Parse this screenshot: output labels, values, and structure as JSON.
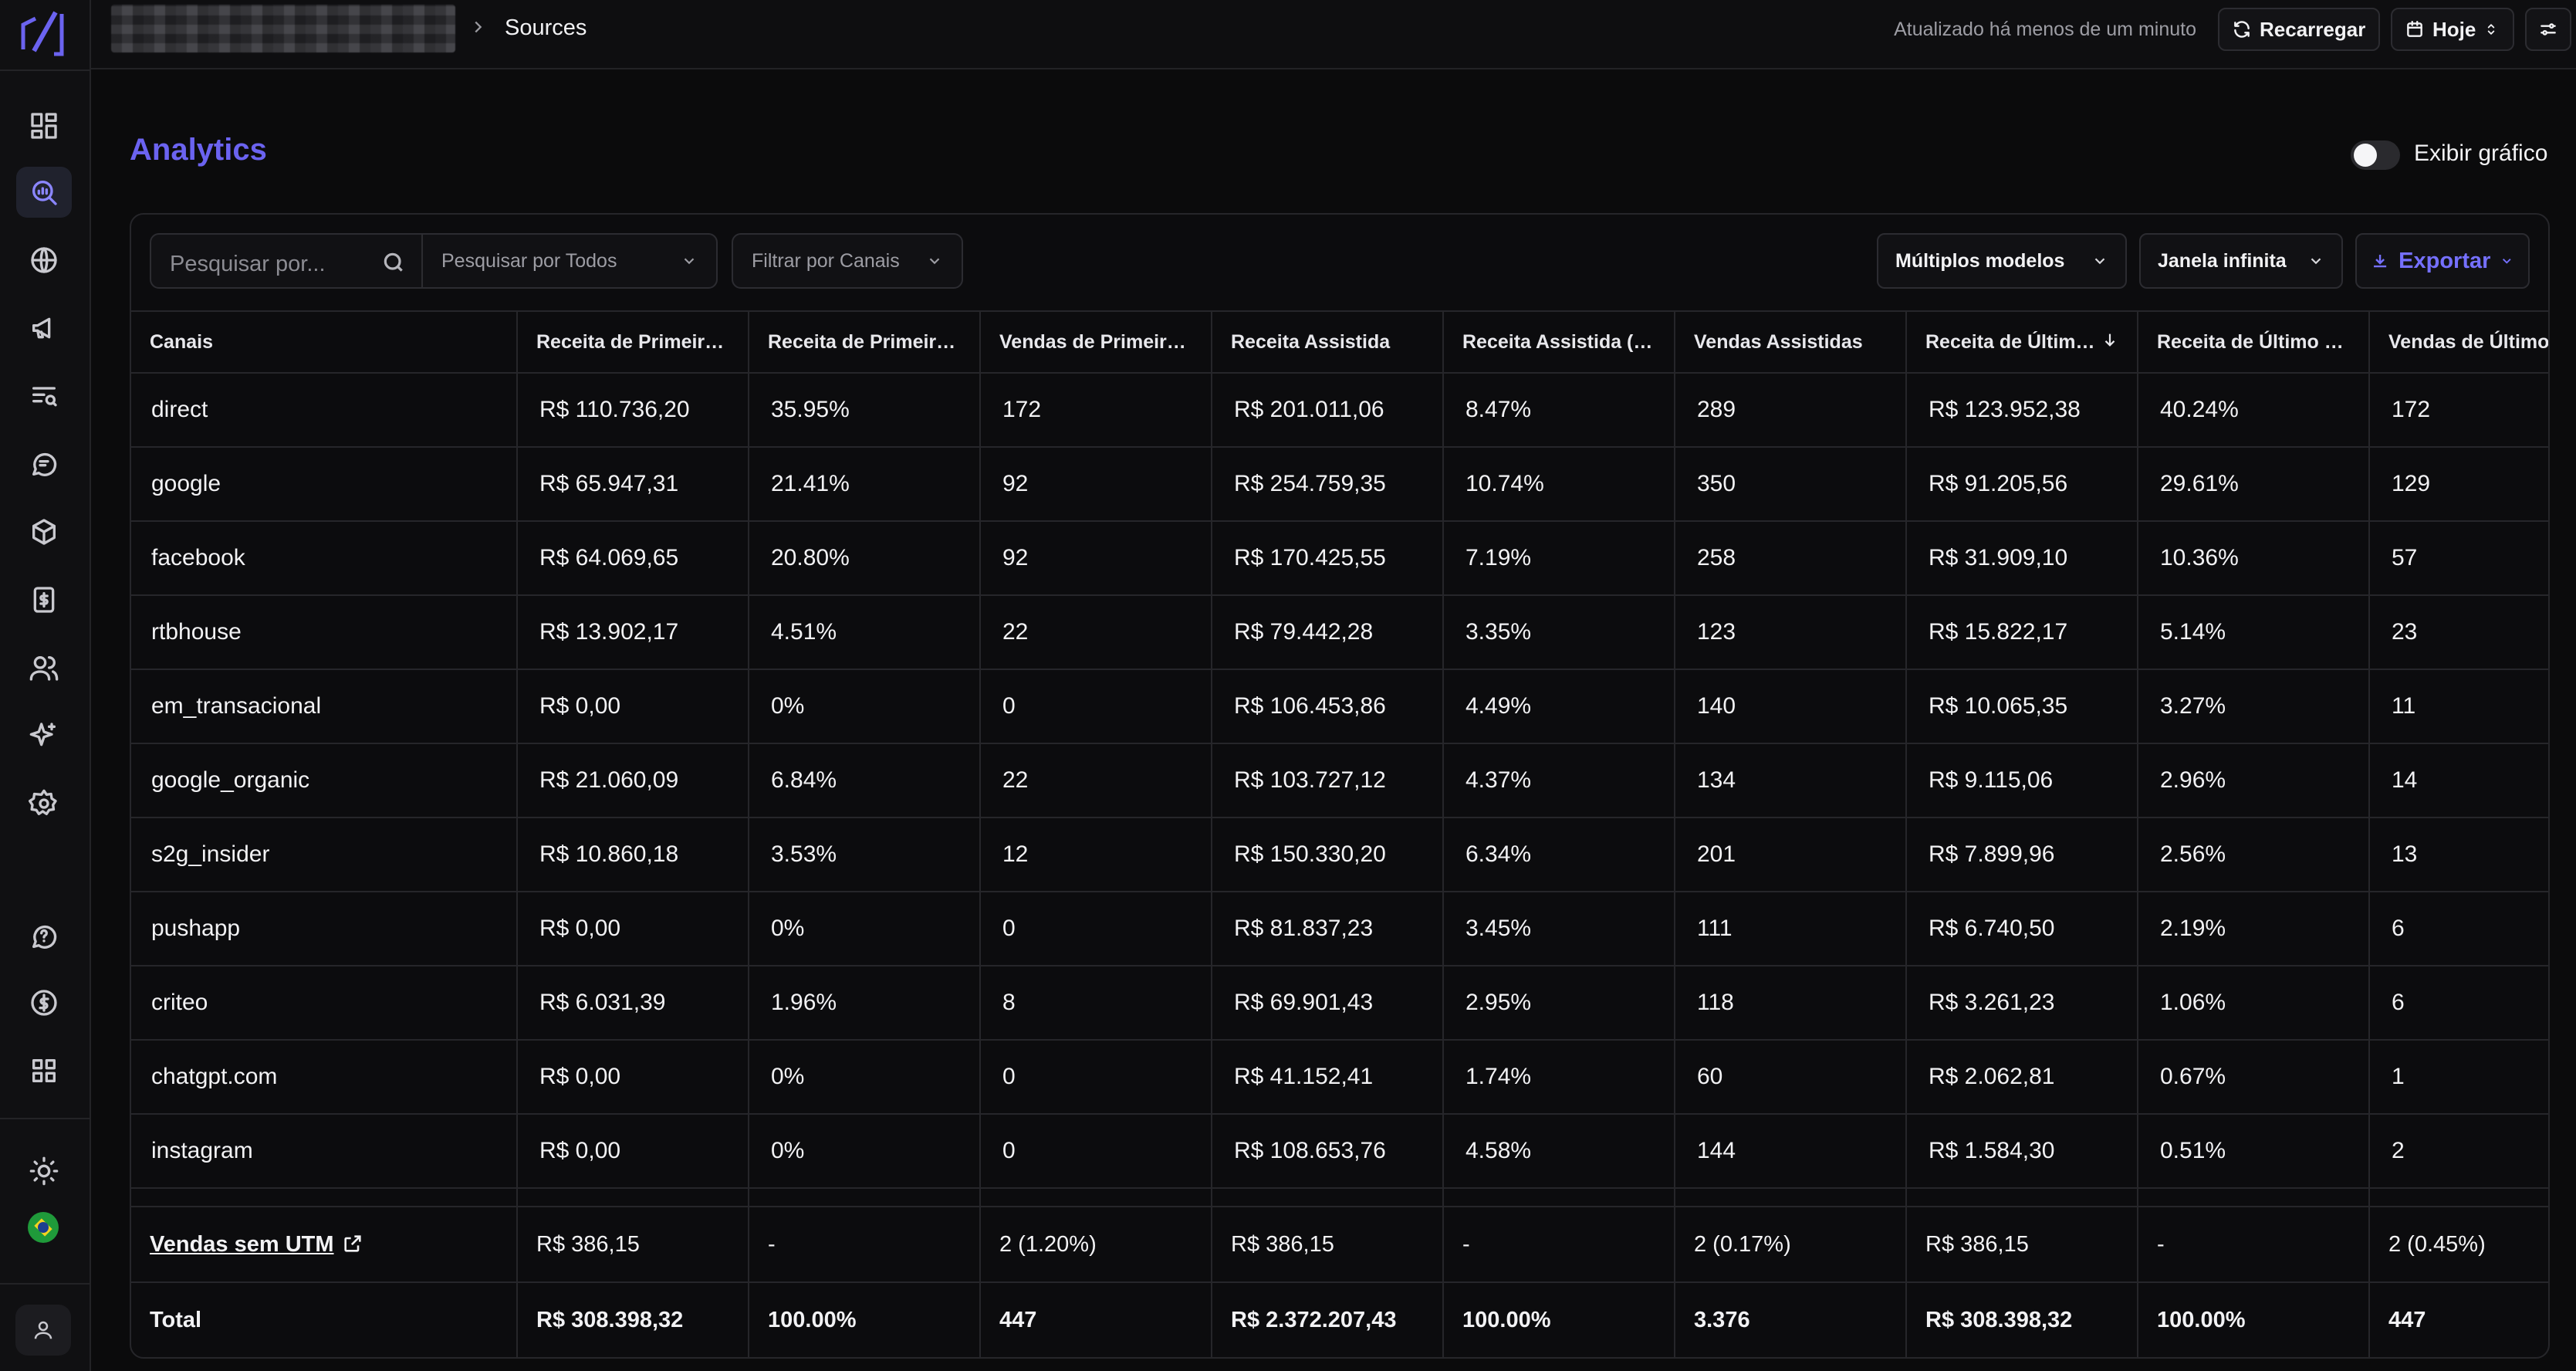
{
  "header": {
    "breadcrumb_current": "Sources",
    "updated_text": "Atualizado há menos de um minuto",
    "reload_label": "Recarregar",
    "date_label": "Hoje"
  },
  "page": {
    "title": "Analytics",
    "show_chart_label": "Exibir gráfico",
    "show_chart_enabled": false
  },
  "toolbar": {
    "search_placeholder": "Pesquisar por...",
    "search_scope": "Pesquisar por Todos",
    "channel_filter": "Filtrar por Canais",
    "models": "Múltiplos modelos",
    "window": "Janela infinita",
    "export_label": "Exportar"
  },
  "table": {
    "columns": [
      "Canais",
      "Receita de Primeiro Clique",
      "Receita de Primeiro Clique (%)",
      "Vendas de Primeiro Clique",
      "Receita Assistida",
      "Receita Assistida (%)",
      "Vendas Assistidas",
      "Receita de Último Clique",
      "Receita de Último Clique (%)",
      "Vendas de Último Clique"
    ],
    "sorted_column_index": 7,
    "rows": [
      [
        "direct",
        "R$ 110.736,20",
        "35.95%",
        "172",
        "R$ 201.011,06",
        "8.47%",
        "289",
        "R$ 123.952,38",
        "40.24%",
        "172"
      ],
      [
        "google",
        "R$ 65.947,31",
        "21.41%",
        "92",
        "R$ 254.759,35",
        "10.74%",
        "350",
        "R$ 91.205,56",
        "29.61%",
        "129"
      ],
      [
        "facebook",
        "R$ 64.069,65",
        "20.80%",
        "92",
        "R$ 170.425,55",
        "7.19%",
        "258",
        "R$ 31.909,10",
        "10.36%",
        "57"
      ],
      [
        "rtbhouse",
        "R$ 13.902,17",
        "4.51%",
        "22",
        "R$ 79.442,28",
        "3.35%",
        "123",
        "R$ 15.822,17",
        "5.14%",
        "23"
      ],
      [
        "em_transacional",
        "R$ 0,00",
        "0%",
        "0",
        "R$ 106.453,86",
        "4.49%",
        "140",
        "R$ 10.065,35",
        "3.27%",
        "11"
      ],
      [
        "google_organic",
        "R$ 21.060,09",
        "6.84%",
        "22",
        "R$ 103.727,12",
        "4.37%",
        "134",
        "R$ 9.115,06",
        "2.96%",
        "14"
      ],
      [
        "s2g_insider",
        "R$ 10.860,18",
        "3.53%",
        "12",
        "R$ 150.330,20",
        "6.34%",
        "201",
        "R$ 7.899,96",
        "2.56%",
        "13"
      ],
      [
        "pushapp",
        "R$ 0,00",
        "0%",
        "0",
        "R$ 81.837,23",
        "3.45%",
        "111",
        "R$ 6.740,50",
        "2.19%",
        "6"
      ],
      [
        "criteo",
        "R$ 6.031,39",
        "1.96%",
        "8",
        "R$ 69.901,43",
        "2.95%",
        "118",
        "R$ 3.261,23",
        "1.06%",
        "6"
      ],
      [
        "chatgpt.com",
        "R$ 0,00",
        "0%",
        "0",
        "R$ 41.152,41",
        "1.74%",
        "60",
        "R$ 2.062,81",
        "0.67%",
        "1"
      ],
      [
        "instagram",
        "R$ 0,00",
        "0%",
        "0",
        "R$ 108.653,76",
        "4.58%",
        "144",
        "R$ 1.584,30",
        "0.51%",
        "2"
      ]
    ],
    "no_utm_row": [
      "Vendas sem UTM",
      "R$ 386,15",
      "-",
      "2 (1.20%)",
      "R$ 386,15",
      "-",
      "2 (0.17%)",
      "R$ 386,15",
      "-",
      "2 (0.45%)"
    ],
    "total_row": [
      "Total",
      "R$ 308.398,32",
      "100.00%",
      "447",
      "R$ 2.372.207,43",
      "100.00%",
      "3.376",
      "R$ 308.398,32",
      "100.00%",
      "447"
    ]
  },
  "sidebar": {
    "icons": [
      "dashboard-icon",
      "analytics-icon",
      "globe-icon",
      "megaphone-icon",
      "list-search-icon",
      "chat-icon",
      "box-icon",
      "receipt-icon",
      "users-icon",
      "sparkles-icon",
      "settings-icon",
      "help-icon",
      "dollar-icon",
      "apps-icon",
      "sun-icon",
      "brazil-flag-icon",
      "user-icon"
    ],
    "accent_color": "#6b63f0"
  }
}
